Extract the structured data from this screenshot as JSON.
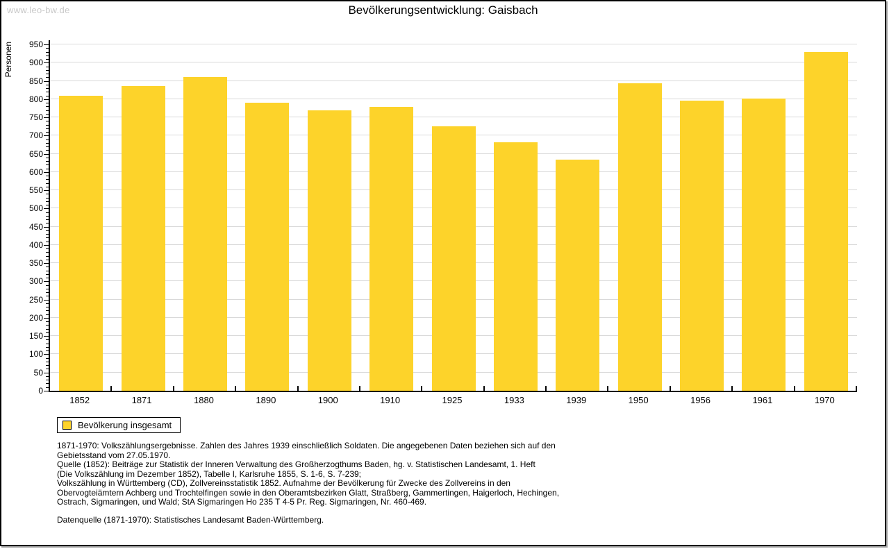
{
  "header": {
    "watermark": "www.leo-bw.de"
  },
  "chart_data": {
    "type": "bar",
    "title": "Bevölkerungsentwicklung: Gaisbach",
    "ylabel": "Personen",
    "xlabel": "",
    "categories": [
      "1852",
      "1871",
      "1880",
      "1890",
      "1900",
      "1910",
      "1925",
      "1933",
      "1939",
      "1950",
      "1956",
      "1961",
      "1970"
    ],
    "values": [
      810,
      835,
      860,
      790,
      770,
      779,
      726,
      682,
      634,
      843,
      795,
      801,
      930
    ],
    "ylim": [
      0,
      950
    ],
    "ytick_step": 50,
    "y_minor_tick_step": 10,
    "grid": true,
    "bar_color": "#fdd32a",
    "grid_color": "#d9d9d9",
    "legend": {
      "label": "Bevölkerung insgesamt",
      "position": "bottom-left"
    }
  },
  "footnotes": {
    "block": "1871-1970: Volkszählungsergebnisse. Zahlen des Jahres 1939 einschließlich Soldaten. Die angegebenen Daten beziehen sich auf den\nGebietsstand vom 27.05.1970.\nQuelle (1852): Beiträge zur Statistik der Inneren Verwaltung des Großherzogthums Baden, hg. v. Statistischen Landesamt, 1. Heft\n(Die Volkszählung im Dezember 1852), Tabelle I, Karlsruhe 1855, S. 1-6, S. 7-239;\nVolkszählung in Württemberg (CD), Zollvereinsstatistik 1852. Aufnahme der Bevölkerung für Zwecke des Zollvereins in den\nObervogteiämtern Achberg und Trochtelfingen sowie in den Oberamtsbezirken Glatt, Straßberg, Gammertingen, Haigerloch, Hechingen,\nOstrach, Sigmaringen, und Wald; StA Sigmaringen Ho 235 T 4-5 Pr. Reg. Sigmaringen, Nr. 460-469.",
    "datasource": "Datenquelle (1871-1970): Statistisches Landesamt Baden-Württemberg."
  }
}
